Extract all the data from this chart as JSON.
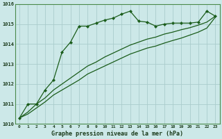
{
  "title": "Graphe pression niveau de la mer (hPa)",
  "background_color": "#cce8e8",
  "grid_color": "#aacccc",
  "line_color": "#1a5c1a",
  "xlim": [
    -0.5,
    23.5
  ],
  "ylim": [
    1010,
    1016
  ],
  "yticks": [
    1010,
    1011,
    1012,
    1013,
    1014,
    1015,
    1016
  ],
  "xticks": [
    0,
    1,
    2,
    3,
    4,
    5,
    6,
    7,
    8,
    9,
    10,
    11,
    12,
    13,
    14,
    15,
    16,
    17,
    18,
    19,
    20,
    21,
    22,
    23
  ],
  "series1_x": [
    0,
    1,
    2,
    3,
    4,
    5,
    6,
    7,
    8,
    9,
    10,
    11,
    12,
    13,
    14,
    15,
    16,
    17,
    18,
    19,
    20,
    21,
    22,
    23
  ],
  "series1_y": [
    1010.3,
    1011.0,
    1011.0,
    1011.7,
    1012.2,
    1013.6,
    1014.1,
    1014.9,
    1014.9,
    1015.05,
    1015.2,
    1015.3,
    1015.5,
    1015.65,
    1015.15,
    1015.1,
    1014.9,
    1015.0,
    1015.05,
    1015.05,
    1015.05,
    1015.1,
    1015.65,
    1015.4
  ],
  "series2_x": [
    0,
    1,
    2,
    3,
    4,
    5,
    6,
    7,
    8,
    9,
    10,
    11,
    12,
    13,
    14,
    15,
    16,
    17,
    18,
    19,
    20,
    21,
    22,
    23
  ],
  "series2_y": [
    1010.3,
    1010.6,
    1011.0,
    1011.3,
    1011.7,
    1012.0,
    1012.3,
    1012.6,
    1012.9,
    1013.1,
    1013.35,
    1013.55,
    1013.75,
    1013.95,
    1014.1,
    1014.25,
    1014.35,
    1014.5,
    1014.6,
    1014.72,
    1014.82,
    1014.95,
    1015.1,
    1015.4
  ],
  "series3_x": [
    0,
    1,
    2,
    3,
    4,
    5,
    6,
    7,
    8,
    9,
    10,
    11,
    12,
    13,
    14,
    15,
    16,
    17,
    18,
    19,
    20,
    21,
    22,
    23
  ],
  "series3_y": [
    1010.3,
    1010.5,
    1010.8,
    1011.1,
    1011.45,
    1011.7,
    1011.95,
    1012.2,
    1012.5,
    1012.7,
    1012.9,
    1013.1,
    1013.3,
    1013.5,
    1013.65,
    1013.8,
    1013.9,
    1014.05,
    1014.18,
    1014.3,
    1014.45,
    1014.6,
    1014.8,
    1015.35
  ]
}
